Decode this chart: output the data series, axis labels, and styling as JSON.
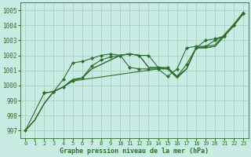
{
  "xlabel_bottom": "Graphe pression niveau de la mer (hPa)",
  "xlim": [
    -0.5,
    23.5
  ],
  "ylim": [
    996.5,
    1005.5
  ],
  "yticks": [
    997,
    998,
    999,
    1000,
    1001,
    1002,
    1003,
    1004,
    1005
  ],
  "xticks": [
    0,
    1,
    2,
    3,
    4,
    5,
    6,
    7,
    8,
    9,
    10,
    11,
    12,
    13,
    14,
    15,
    16,
    17,
    18,
    19,
    20,
    21,
    22,
    23
  ],
  "bg_color": "#c8ece4",
  "grid_color": "#a0ccbc",
  "line_color": "#2d6e2d",
  "series": [
    {
      "x": [
        0,
        1,
        2,
        3,
        4,
        5,
        6,
        7,
        8,
        9,
        10,
        11,
        12,
        13,
        14,
        15,
        16,
        17,
        18,
        19,
        20,
        21,
        22,
        23
      ],
      "y": [
        997.0,
        997.7,
        998.8,
        999.6,
        999.9,
        1000.4,
        1000.5,
        1001.1,
        1001.4,
        1001.7,
        1002.0,
        1002.1,
        1002.0,
        1001.2,
        1001.2,
        1001.1,
        1000.6,
        1001.1,
        1002.5,
        1002.5,
        1002.6,
        1003.3,
        1004.0,
        1004.8
      ],
      "markers": false
    },
    {
      "x": [
        0,
        1,
        2,
        3,
        4,
        5,
        6,
        7,
        8,
        9,
        10,
        11,
        12,
        13,
        14,
        15,
        16,
        17,
        18,
        19,
        20,
        21,
        22,
        23
      ],
      "y": [
        997.0,
        997.7,
        998.8,
        999.6,
        999.9,
        1000.4,
        1000.5,
        1001.1,
        1001.4,
        1001.7,
        1002.0,
        1002.1,
        1002.0,
        1001.2,
        1001.2,
        1001.1,
        1000.6,
        1001.1,
        1002.5,
        1002.6,
        1002.7,
        1003.4,
        1004.1,
        1004.9
      ],
      "markers": false
    },
    {
      "x": [
        2,
        3,
        4,
        5,
        6,
        7,
        8,
        9,
        10,
        11,
        12,
        13,
        14,
        15,
        16,
        17,
        18,
        19,
        20,
        21,
        22,
        23
      ],
      "y": [
        999.5,
        999.6,
        1000.4,
        1001.5,
        1001.6,
        1001.8,
        1002.0,
        1002.1,
        1002.0,
        1001.2,
        1001.1,
        1001.1,
        1001.1,
        1000.6,
        1001.1,
        1002.5,
        1002.6,
        1002.6,
        1003.0,
        1003.3,
        1004.0,
        1004.8
      ],
      "markers": true,
      "marker_x": [
        2,
        3,
        4,
        5,
        6,
        7,
        8,
        9,
        10,
        11,
        12,
        13,
        14,
        15,
        16,
        17,
        18,
        19,
        20,
        21,
        22,
        23
      ],
      "marker_y": [
        999.5,
        999.6,
        1000.4,
        1001.5,
        1001.6,
        1001.8,
        1002.0,
        1002.1,
        1002.0,
        1001.2,
        1001.1,
        1001.1,
        1001.1,
        1000.6,
        1001.1,
        1002.5,
        1002.6,
        1002.6,
        1003.0,
        1003.3,
        1004.0,
        1004.8
      ]
    },
    {
      "x": [
        0,
        2,
        3,
        4,
        5,
        6,
        7,
        8,
        9,
        10,
        11,
        12,
        13,
        14,
        15,
        16,
        17,
        18,
        19,
        20,
        21,
        22,
        23
      ],
      "y": [
        997.0,
        999.5,
        999.6,
        999.9,
        1000.3,
        1000.5,
        1001.3,
        1001.7,
        1001.9,
        1002.0,
        1002.1,
        1002.0,
        1002.0,
        1001.2,
        1001.2,
        1000.6,
        1001.4,
        1002.5,
        1003.0,
        1003.1,
        1003.3,
        1004.0,
        1004.8
      ],
      "markers": true,
      "marker_x": [
        0,
        2,
        3,
        4,
        5,
        6,
        7,
        8,
        9,
        10,
        11,
        12,
        13,
        14,
        15,
        16,
        17,
        18,
        19,
        20,
        21,
        22,
        23
      ],
      "marker_y": [
        997.0,
        999.5,
        999.6,
        999.9,
        1000.3,
        1000.5,
        1001.3,
        1001.7,
        1001.9,
        1002.0,
        1002.1,
        1002.0,
        1002.0,
        1001.2,
        1001.2,
        1000.6,
        1001.4,
        1002.5,
        1003.0,
        1003.1,
        1003.3,
        1004.0,
        1004.8
      ]
    },
    {
      "x": [
        0,
        1,
        2,
        3,
        4,
        5,
        14,
        15,
        16,
        17,
        18,
        19,
        20,
        21,
        22,
        23
      ],
      "y": [
        997.0,
        997.7,
        998.8,
        999.6,
        999.9,
        1000.3,
        1001.1,
        1001.1,
        1000.5,
        1001.1,
        1002.5,
        1002.5,
        1002.6,
        1003.3,
        1004.0,
        1004.8
      ],
      "markers": false
    }
  ]
}
